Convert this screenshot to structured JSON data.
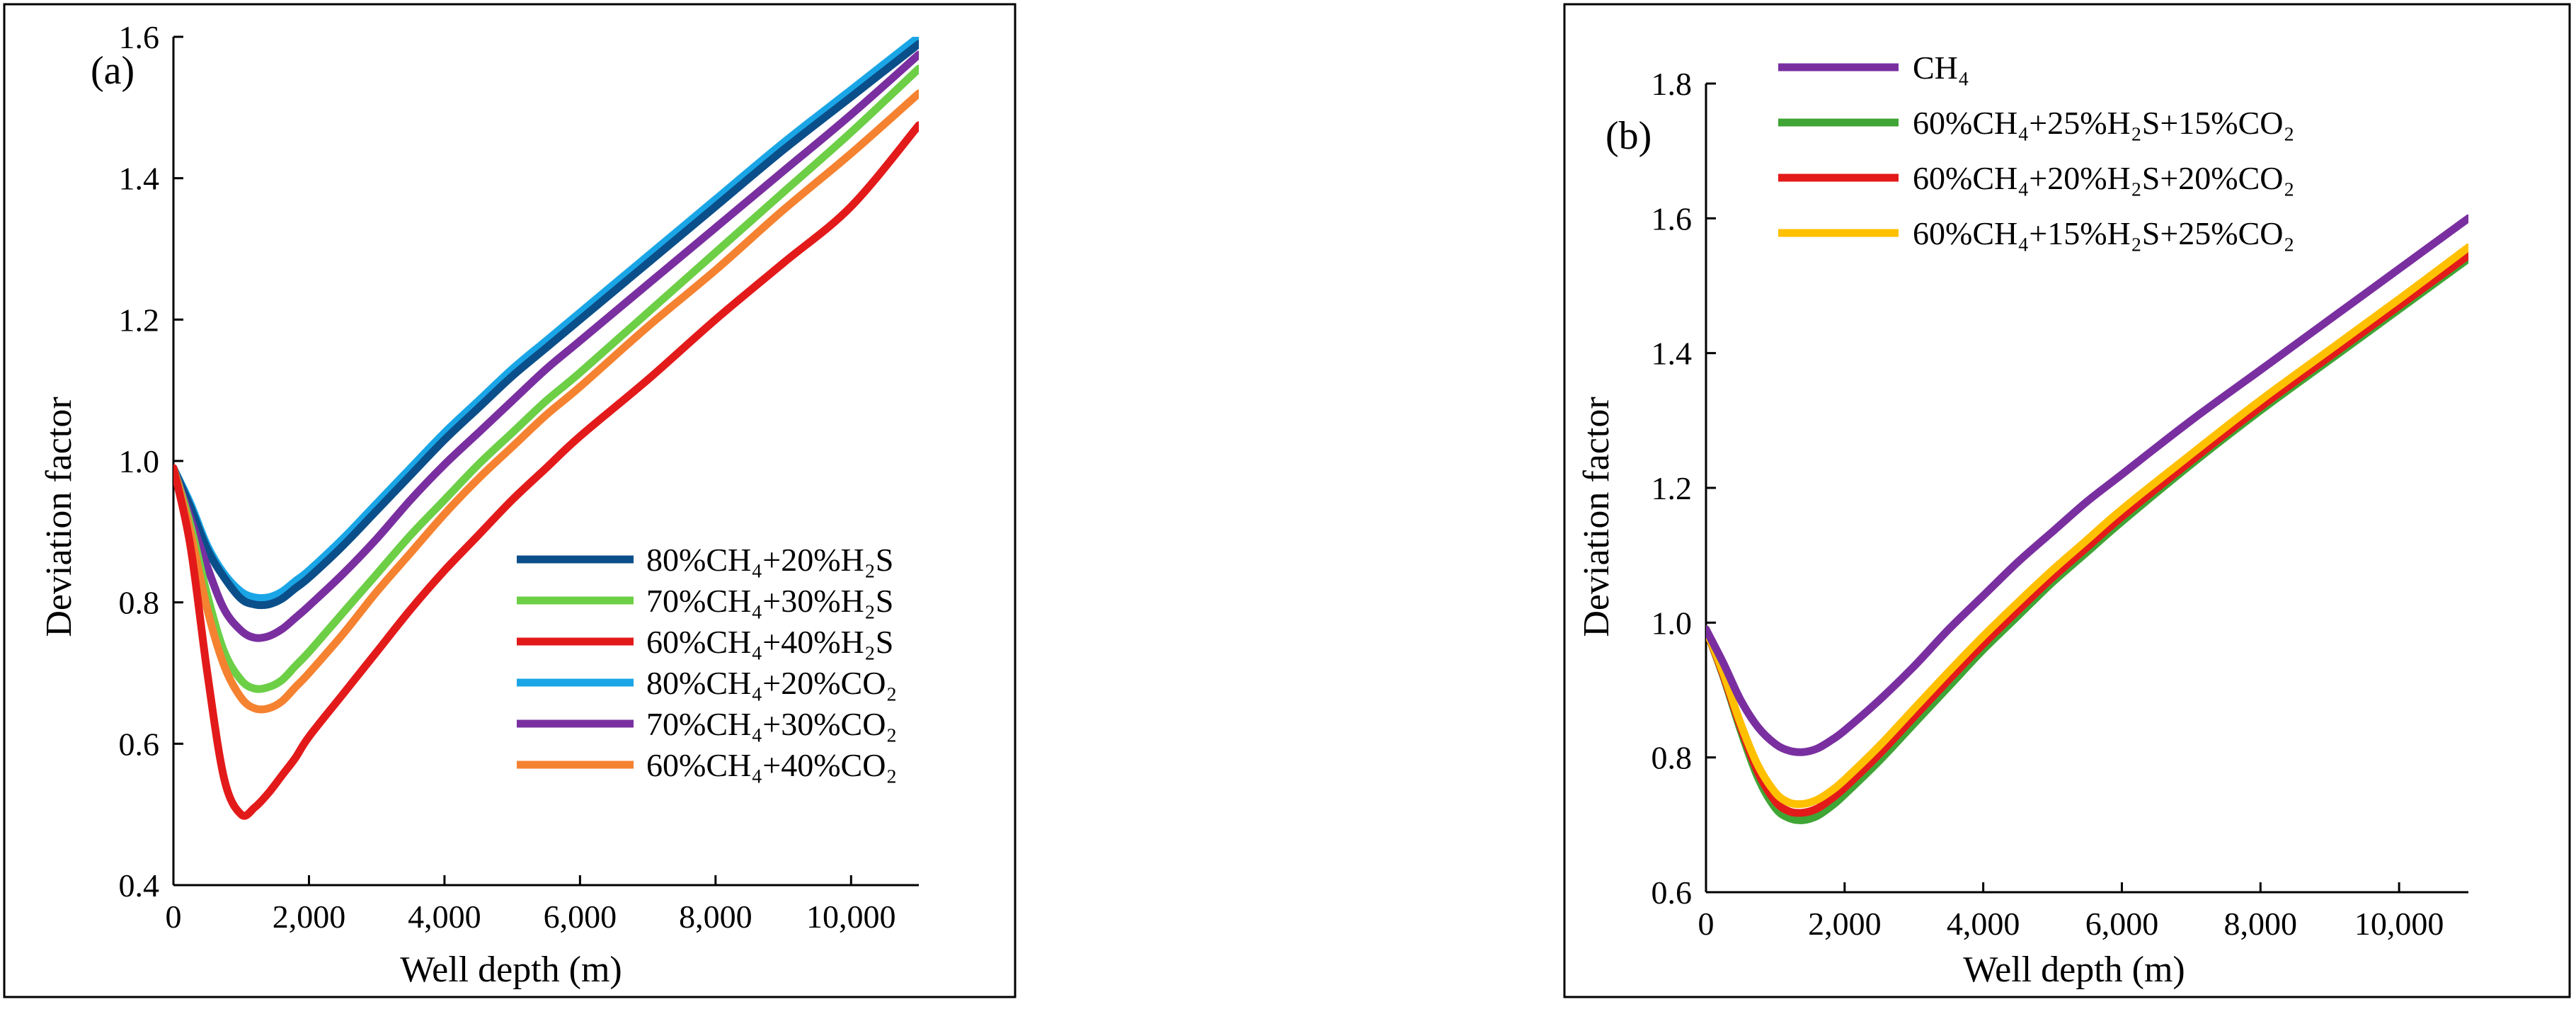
{
  "chart_data": [
    {
      "type": "line",
      "panel_label": "(a)",
      "xlabel": "Well depth (m)",
      "ylabel": "Deviation factor",
      "xlim": [
        0,
        11000
      ],
      "ylim": [
        0.4,
        1.6
      ],
      "x_ticks": [
        0,
        2000,
        4000,
        6000,
        8000,
        10000
      ],
      "x_tick_labels": [
        "0",
        "2,000",
        "4,000",
        "6,000",
        "8,000",
        "10,000"
      ],
      "y_ticks": [
        0.4,
        0.6,
        0.8,
        1.0,
        1.2,
        1.4,
        1.6
      ],
      "y_tick_labels": [
        "0.4",
        "0.6",
        "0.8",
        "1.0",
        "1.2",
        "1.4",
        "1.6"
      ],
      "legend_position": "bottom-right",
      "x": [
        0,
        250,
        500,
        750,
        1000,
        1200,
        1400,
        1600,
        1800,
        2000,
        2500,
        3000,
        3500,
        4000,
        4500,
        5000,
        5500,
        6000,
        7000,
        8000,
        9000,
        10000,
        11000
      ],
      "series": [
        {
          "name": "80%CH₄+20%CO₂",
          "color": "#1aa6e6",
          "values": [
            0.99,
            0.94,
            0.88,
            0.84,
            0.815,
            0.807,
            0.807,
            0.815,
            0.83,
            0.845,
            0.89,
            0.94,
            0.99,
            1.04,
            1.085,
            1.13,
            1.17,
            1.21,
            1.29,
            1.37,
            1.45,
            1.525,
            1.6
          ]
        },
        {
          "name": "80%CH₄+20%H₂S",
          "color": "#0b4f8a",
          "values": [
            0.99,
            0.935,
            0.875,
            0.835,
            0.805,
            0.797,
            0.797,
            0.805,
            0.82,
            0.835,
            0.88,
            0.93,
            0.98,
            1.03,
            1.075,
            1.12,
            1.16,
            1.2,
            1.28,
            1.36,
            1.44,
            1.515,
            1.59
          ]
        },
        {
          "name": "70%CH₄+30%CO₂",
          "color": "#7a2fa0",
          "values": [
            0.99,
            0.92,
            0.85,
            0.79,
            0.76,
            0.75,
            0.752,
            0.762,
            0.778,
            0.795,
            0.84,
            0.89,
            0.945,
            0.995,
            1.04,
            1.085,
            1.13,
            1.17,
            1.25,
            1.33,
            1.41,
            1.49,
            1.575
          ]
        },
        {
          "name": "70%CH₄+30%H₂S",
          "color": "#6ccf46",
          "values": [
            0.99,
            0.91,
            0.81,
            0.73,
            0.69,
            0.678,
            0.68,
            0.69,
            0.71,
            0.73,
            0.785,
            0.84,
            0.895,
            0.945,
            0.995,
            1.04,
            1.085,
            1.125,
            1.21,
            1.295,
            1.38,
            1.465,
            1.555
          ]
        },
        {
          "name": "60%CH₄+40%CO₂",
          "color": "#f58231",
          "values": [
            0.99,
            0.9,
            0.79,
            0.71,
            0.665,
            0.65,
            0.65,
            0.66,
            0.68,
            0.7,
            0.755,
            0.815,
            0.87,
            0.925,
            0.975,
            1.02,
            1.065,
            1.105,
            1.19,
            1.27,
            1.355,
            1.435,
            1.52
          ]
        },
        {
          "name": "60%CH₄+40%H₂S",
          "color": "#e31a1a",
          "values": [
            0.99,
            0.88,
            0.7,
            0.55,
            0.5,
            0.51,
            0.53,
            0.555,
            0.58,
            0.61,
            0.67,
            0.73,
            0.79,
            0.845,
            0.895,
            0.945,
            0.99,
            1.035,
            1.115,
            1.2,
            1.28,
            1.36,
            1.475
          ]
        }
      ],
      "legend_order": [
        "80%CH₄+20%H₂S",
        "70%CH₄+30%H₂S",
        "60%CH₄+40%H₂S",
        "80%CH₄+20%CO₂",
        "70%CH₄+30%CO₂",
        "60%CH₄+40%CO₂"
      ]
    },
    {
      "type": "line",
      "panel_label": "(b)",
      "xlabel": "Well depth (m)",
      "ylabel": "Deviation factor",
      "xlim": [
        0,
        11000
      ],
      "ylim": [
        0.6,
        1.8
      ],
      "x_ticks": [
        0,
        2000,
        4000,
        6000,
        8000,
        10000
      ],
      "x_tick_labels": [
        "0",
        "2,000",
        "4,000",
        "6,000",
        "8,000",
        "10,000"
      ],
      "y_ticks": [
        0.6,
        0.8,
        1.0,
        1.2,
        1.4,
        1.6,
        1.8
      ],
      "y_tick_labels": [
        "0.6",
        "0.8",
        "1.0",
        "1.2",
        "1.4",
        "1.6",
        "1.8"
      ],
      "legend_position": "top-left",
      "x": [
        0,
        250,
        500,
        750,
        1000,
        1200,
        1400,
        1600,
        1800,
        2000,
        2500,
        3000,
        3500,
        4000,
        4500,
        5000,
        5500,
        6000,
        7000,
        8000,
        9000,
        10000,
        11000
      ],
      "series": [
        {
          "name": "60%CH₄+25%H₂S+15%CO₂",
          "color": "#3fa535",
          "values": [
            0.99,
            0.92,
            0.84,
            0.77,
            0.725,
            0.71,
            0.707,
            0.713,
            0.727,
            0.745,
            0.795,
            0.85,
            0.905,
            0.96,
            1.01,
            1.06,
            1.105,
            1.15,
            1.235,
            1.315,
            1.39,
            1.465,
            1.54
          ]
        },
        {
          "name": "60%CH₄+20%H₂S+20%CO₂",
          "color": "#e31a1a",
          "values": [
            0.99,
            0.922,
            0.845,
            0.778,
            0.735,
            0.72,
            0.718,
            0.724,
            0.738,
            0.755,
            0.805,
            0.86,
            0.915,
            0.968,
            1.018,
            1.067,
            1.112,
            1.157,
            1.24,
            1.32,
            1.395,
            1.47,
            1.545
          ]
        },
        {
          "name": "60%CH₄+15%H₂S+25%CO₂",
          "color": "#ffc000",
          "values": [
            0.99,
            0.925,
            0.85,
            0.788,
            0.748,
            0.733,
            0.731,
            0.737,
            0.75,
            0.767,
            0.817,
            0.872,
            0.927,
            0.98,
            1.03,
            1.078,
            1.123,
            1.168,
            1.25,
            1.33,
            1.405,
            1.48,
            1.557
          ]
        },
        {
          "name": "CH₄",
          "color": "#7a2fa0",
          "values": [
            0.99,
            0.94,
            0.885,
            0.845,
            0.82,
            0.81,
            0.808,
            0.813,
            0.825,
            0.84,
            0.885,
            0.935,
            0.99,
            1.04,
            1.09,
            1.135,
            1.18,
            1.22,
            1.3,
            1.375,
            1.45,
            1.525,
            1.6
          ]
        }
      ],
      "legend_order": [
        "CH₄",
        "60%CH₄+25%H₂S+15%CO₂",
        "60%CH₄+20%H₂S+20%CO₂",
        "60%CH₄+15%H₂S+25%CO₂"
      ]
    }
  ]
}
